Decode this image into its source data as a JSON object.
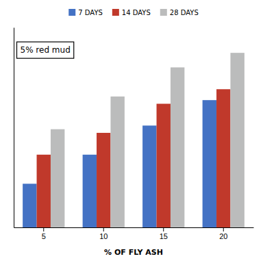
{
  "chart_data": {
    "type": "bar",
    "categories": [
      "5",
      "10",
      "15",
      "20"
    ],
    "series": [
      {
        "name": "7 DAYS",
        "color": "#4472C4",
        "values": [
          12,
          20,
          28,
          35
        ]
      },
      {
        "name": "14 DAYS",
        "color": "#C0392B",
        "values": [
          20,
          26,
          34,
          38
        ]
      },
      {
        "name": "28 DAYS",
        "color": "#BBBCBC",
        "values": [
          27,
          36,
          44,
          48
        ]
      }
    ],
    "xlabel": "% OF FLY ASH",
    "annotation": "5% red mud",
    "ylim": [
      0,
      55
    ],
    "grid": false,
    "legend": "top",
    "tick_labels": "x"
  }
}
